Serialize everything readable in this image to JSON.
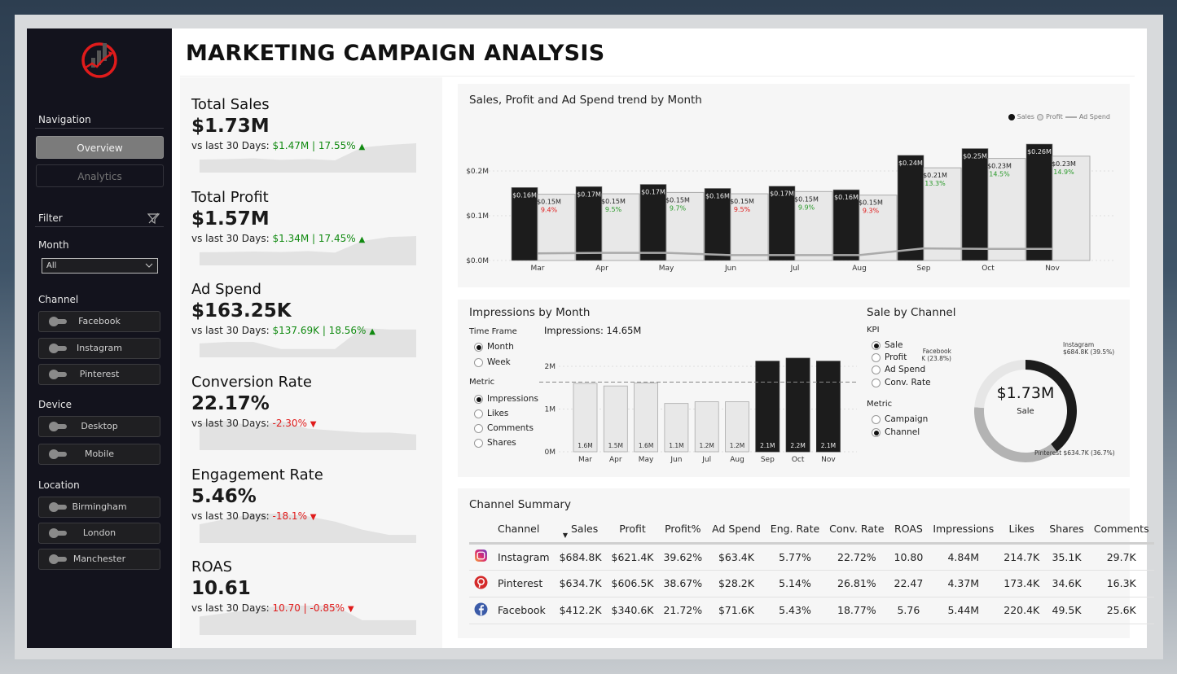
{
  "title": "MARKETING CAMPAIGN ANALYSIS",
  "colors": {
    "sidebar": "#13131d",
    "accent_red": "#e01b1b",
    "positive": "#118a11",
    "negative": "#e01b1b",
    "sales_bar": "#1c1c1c",
    "profit_bar": "#e8e8e8"
  },
  "sidebar": {
    "logo": "red-circle-chart-logo",
    "navigation_label": "Navigation",
    "nav": [
      {
        "label": "Overview",
        "active": true
      },
      {
        "label": "Analytics",
        "active": false
      }
    ],
    "filter_label": "Filter",
    "filter_icon": "clear-filter-icon",
    "month_label": "Month",
    "month_value": "All",
    "channel_label": "Channel",
    "channels": [
      "Facebook",
      "Instagram",
      "Pinterest"
    ],
    "device_label": "Device",
    "devices": [
      "Desktop",
      "Mobile"
    ],
    "location_label": "Location",
    "locations": [
      "Birmingham",
      "London",
      "Manchester"
    ]
  },
  "kpis": [
    {
      "title": "Total Sales",
      "value": "$1.73M",
      "prefix": "vs last 30 Days: ",
      "change": "$1.47M | 17.55%",
      "dir": "up",
      "trend": [
        0.163,
        0.165,
        0.17,
        0.161,
        0.166,
        0.158,
        0.235,
        0.25,
        0.26
      ]
    },
    {
      "title": "Total Profit",
      "value": "$1.57M",
      "prefix": "vs last 30 Days: ",
      "change": "$1.34M | 17.45%",
      "dir": "up",
      "trend": [
        0.148,
        0.149,
        0.152,
        0.149,
        0.154,
        0.146,
        0.207,
        0.228,
        0.233
      ]
    },
    {
      "title": "Ad Spend",
      "value": "$163.25K",
      "prefix": "vs last 30 Days: ",
      "change": "$137.69K | 18.56%",
      "dir": "up",
      "trend": [
        16,
        17,
        17,
        12,
        12,
        12,
        27,
        26,
        26
      ]
    },
    {
      "title": "Conversion Rate",
      "value": "22.17%",
      "prefix": "vs last 30 Days: ",
      "change": "-2.30%",
      "dir": "down",
      "trend": [
        24,
        25,
        22,
        25,
        21,
        20,
        19,
        19,
        18
      ]
    },
    {
      "title": "Engagement Rate",
      "value": "5.46%",
      "prefix": "vs last 30 Days: ",
      "change": "-18.1%",
      "dir": "down",
      "trend": [
        5,
        6,
        7,
        7,
        6.5,
        5.5,
        4,
        3,
        3
      ]
    },
    {
      "title": "ROAS",
      "value": "10.61",
      "prefix": "vs last 30 Days: ",
      "change": "10.70 | -0.85%",
      "dir": "down",
      "trend": [
        10,
        11,
        12,
        13,
        13,
        13,
        9,
        9,
        9
      ]
    }
  ],
  "trend_chart": {
    "title": "Sales, Profit and Ad Spend trend by Month",
    "legend": [
      "Sales",
      "Profit",
      "Ad Spend"
    ],
    "chart_data": {
      "type": "bar",
      "categories": [
        "Mar",
        "Apr",
        "May",
        "Jun",
        "Jul",
        "Aug",
        "Sep",
        "Oct",
        "Nov"
      ],
      "ylim": [
        0,
        0.28
      ],
      "yticks": [
        "$0.0M",
        "$0.1M",
        "$0.2M"
      ],
      "grid": true,
      "legend_position": "top-right",
      "series": [
        {
          "name": "Sales",
          "values": [
            0.163,
            0.165,
            0.17,
            0.161,
            0.166,
            0.158,
            0.235,
            0.25,
            0.26
          ],
          "labels": [
            "$0.16M",
            "$0.17M",
            "$0.17M",
            "$0.16M",
            "$0.17M",
            "$0.16M",
            "$0.24M",
            "$0.25M",
            "$0.26M"
          ]
        },
        {
          "name": "Profit",
          "values": [
            0.148,
            0.149,
            0.152,
            0.149,
            0.154,
            0.146,
            0.207,
            0.228,
            0.233
          ],
          "labels": [
            "$0.15M",
            "$0.15M",
            "$0.15M",
            "$0.15M",
            "$0.15M",
            "$0.15M",
            "$0.21M",
            "$0.23M",
            "$0.23M"
          ],
          "pct_labels": [
            "9.4%",
            "9.5%",
            "9.7%",
            "9.5%",
            "9.9%",
            "9.3%",
            "13.3%",
            "14.5%",
            "14.9%"
          ],
          "pct_colors": [
            "red",
            "green",
            "green",
            "red",
            "green",
            "red",
            "green",
            "green",
            "green"
          ]
        },
        {
          "name": "Ad Spend",
          "type": "line",
          "values": [
            0.016,
            0.017,
            0.017,
            0.012,
            0.012,
            0.012,
            0.027,
            0.026,
            0.026
          ]
        }
      ]
    }
  },
  "impressions": {
    "title": "Impressions by Month",
    "time_frame_label": "Time Frame",
    "time_frames": [
      {
        "label": "Month",
        "on": true
      },
      {
        "label": "Week",
        "on": false
      }
    ],
    "metric_label": "Metric",
    "metrics": [
      {
        "label": "Impressions",
        "on": true
      },
      {
        "label": "Likes",
        "on": false
      },
      {
        "label": "Comments",
        "on": false
      },
      {
        "label": "Shares",
        "on": false
      }
    ],
    "total": "Impressions: 14.65M",
    "chart_data": {
      "type": "bar",
      "categories": [
        "Mar",
        "Apr",
        "May",
        "Jun",
        "Jul",
        "Aug",
        "Sep",
        "Oct",
        "Nov"
      ],
      "values": [
        1.6,
        1.54,
        1.61,
        1.13,
        1.17,
        1.17,
        2.12,
        2.19,
        2.12
      ],
      "labels": [
        "1.6M",
        "1.5M",
        "1.6M",
        "1.1M",
        "1.2M",
        "1.2M",
        "2.1M",
        "2.2M",
        "2.1M"
      ],
      "highlighted": [
        false,
        false,
        false,
        false,
        false,
        false,
        true,
        true,
        true
      ],
      "average_line": 1.63,
      "ylim": [
        0,
        2.3
      ],
      "yticks": [
        "0M",
        "1M",
        "2M"
      ]
    }
  },
  "sale_by_channel": {
    "title": "Sale by Channel",
    "kpi_label": "KPI",
    "kpis": [
      {
        "label": "Sale",
        "on": true
      },
      {
        "label": "Profit",
        "on": false
      },
      {
        "label": "Ad Spend",
        "on": false
      },
      {
        "label": "Conv. Rate",
        "on": false
      }
    ],
    "metric_label": "Metric",
    "metrics": [
      {
        "label": "Campaign",
        "on": false
      },
      {
        "label": "Channel",
        "on": true
      }
    ],
    "center_value": "$1.73M",
    "center_label": "Sale",
    "chart_data": {
      "type": "pie",
      "slices": [
        {
          "name": "Instagram",
          "value": 684.8,
          "pct": 39.5,
          "label": "$684.8K (39.5%)",
          "color": "#1c1c1c"
        },
        {
          "name": "Pinterest",
          "value": 634.7,
          "pct": 36.7,
          "label": "$634.7K (36.7%)",
          "color": "#b3b3b3"
        },
        {
          "name": "Facebook",
          "value": 412.2,
          "pct": 23.8,
          "label": "$412.2K (23.8%)",
          "color": "#e6e6e6"
        }
      ]
    }
  },
  "summary": {
    "title": "Channel Summary",
    "columns": [
      "Channel",
      "Sales",
      "Profit",
      "Profit%",
      "Ad Spend",
      "Eng. Rate",
      "Conv. Rate",
      "ROAS",
      "Impressions",
      "Likes",
      "Shares",
      "Comments"
    ],
    "sorted_column": "Sales",
    "rows": [
      {
        "icon": "instagram-icon",
        "cells": [
          "Instagram",
          "$684.8K",
          "$621.4K",
          "39.62%",
          "$63.4K",
          "5.77%",
          "22.72%",
          "10.80",
          "4.84M",
          "214.7K",
          "35.1K",
          "29.7K"
        ]
      },
      {
        "icon": "pinterest-icon",
        "cells": [
          "Pinterest",
          "$634.7K",
          "$606.5K",
          "38.67%",
          "$28.2K",
          "5.14%",
          "26.81%",
          "22.47",
          "4.37M",
          "173.4K",
          "34.6K",
          "16.3K"
        ]
      },
      {
        "icon": "facebook-icon",
        "cells": [
          "Facebook",
          "$412.2K",
          "$340.6K",
          "21.72%",
          "$71.6K",
          "5.43%",
          "18.77%",
          "5.76",
          "5.44M",
          "220.4K",
          "49.5K",
          "25.6K"
        ]
      }
    ]
  }
}
